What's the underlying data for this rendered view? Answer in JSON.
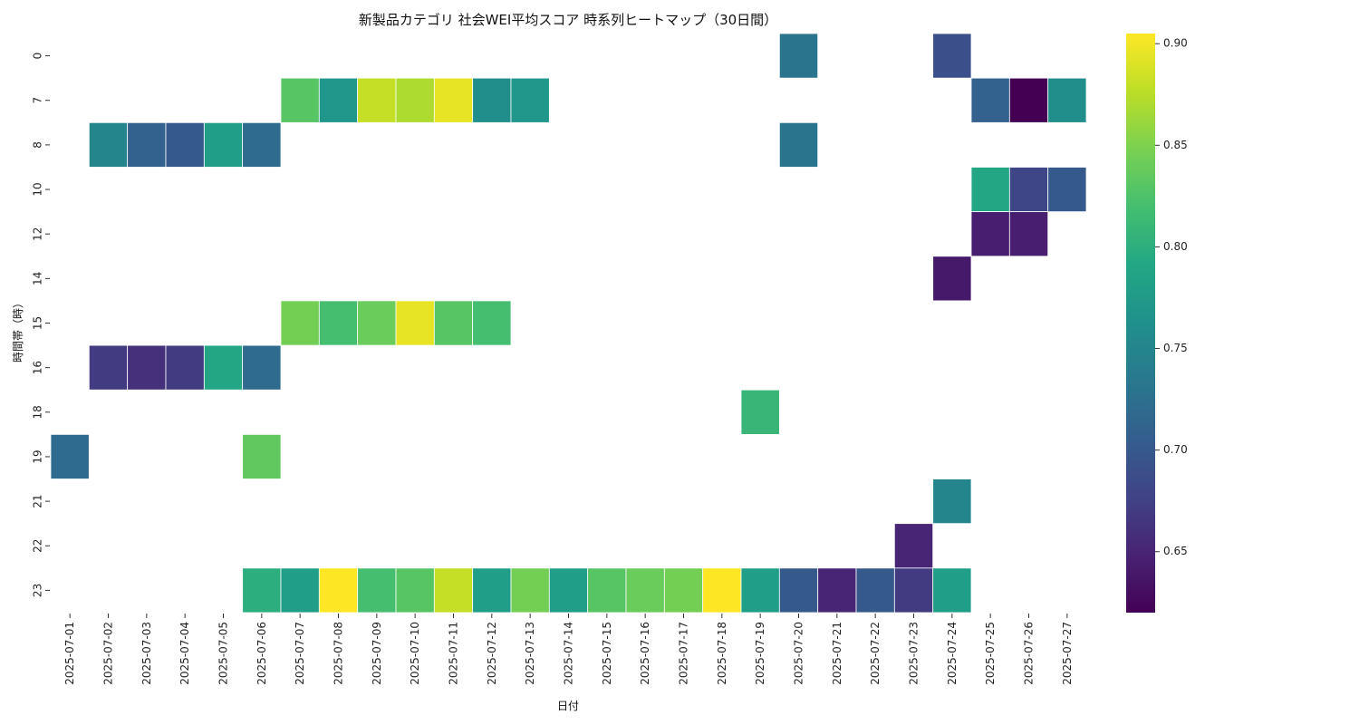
{
  "chart_data": {
    "type": "heatmap",
    "title": "新製品カテゴリ 社会WEI平均スコア 時系列ヒートマップ（30日間）",
    "xlabel": "日付",
    "ylabel": "時間帯（時）",
    "colormap": "viridis",
    "x": [
      "2025-07-01",
      "2025-07-02",
      "2025-07-03",
      "2025-07-04",
      "2025-07-05",
      "2025-07-06",
      "2025-07-07",
      "2025-07-08",
      "2025-07-09",
      "2025-07-10",
      "2025-07-11",
      "2025-07-12",
      "2025-07-13",
      "2025-07-14",
      "2025-07-15",
      "2025-07-16",
      "2025-07-17",
      "2025-07-18",
      "2025-07-19",
      "2025-07-20",
      "2025-07-21",
      "2025-07-22",
      "2025-07-23",
      "2025-07-24",
      "2025-07-25",
      "2025-07-26",
      "2025-07-27"
    ],
    "y": [
      "0",
      "7",
      "8",
      "10",
      "12",
      "14",
      "15",
      "16",
      "18",
      "19",
      "21",
      "22",
      "23"
    ],
    "values": [
      [
        null,
        null,
        null,
        null,
        null,
        null,
        null,
        null,
        null,
        null,
        null,
        null,
        null,
        null,
        null,
        null,
        null,
        null,
        null,
        0.73,
        null,
        null,
        null,
        0.69,
        null,
        null,
        null
      ],
      [
        null,
        null,
        null,
        null,
        null,
        null,
        0.83,
        0.77,
        0.88,
        0.87,
        0.895,
        0.76,
        0.77,
        null,
        null,
        null,
        null,
        null,
        null,
        null,
        null,
        null,
        null,
        null,
        0.71,
        0.62,
        0.76
      ],
      [
        null,
        0.75,
        0.71,
        0.7,
        0.78,
        0.72,
        null,
        null,
        null,
        null,
        null,
        null,
        null,
        null,
        null,
        null,
        null,
        null,
        null,
        0.73,
        null,
        null,
        null,
        null,
        null,
        null,
        null
      ],
      [
        null,
        null,
        null,
        null,
        null,
        null,
        null,
        null,
        null,
        null,
        null,
        null,
        null,
        null,
        null,
        null,
        null,
        null,
        null,
        null,
        null,
        null,
        null,
        null,
        0.79,
        0.68,
        0.7
      ],
      [
        null,
        null,
        null,
        null,
        null,
        null,
        null,
        null,
        null,
        null,
        null,
        null,
        null,
        null,
        null,
        null,
        null,
        null,
        null,
        null,
        null,
        null,
        null,
        null,
        0.645,
        0.645,
        null
      ],
      [
        null,
        null,
        null,
        null,
        null,
        null,
        null,
        null,
        null,
        null,
        null,
        null,
        null,
        null,
        null,
        null,
        null,
        null,
        null,
        null,
        null,
        null,
        null,
        0.64,
        null,
        null,
        null
      ],
      [
        null,
        null,
        null,
        null,
        null,
        null,
        0.845,
        0.82,
        0.84,
        0.895,
        0.83,
        0.82,
        null,
        null,
        null,
        null,
        null,
        null,
        null,
        null,
        null,
        null,
        null,
        null,
        null,
        null,
        null
      ],
      [
        null,
        0.67,
        0.66,
        0.67,
        0.79,
        0.72,
        null,
        null,
        null,
        null,
        null,
        null,
        null,
        null,
        null,
        null,
        null,
        null,
        null,
        null,
        null,
        null,
        null,
        null,
        null,
        null,
        null
      ],
      [
        null,
        null,
        null,
        null,
        null,
        null,
        null,
        null,
        null,
        null,
        null,
        null,
        null,
        null,
        null,
        null,
        null,
        null,
        0.81,
        null,
        null,
        null,
        null,
        null,
        null,
        null,
        null
      ],
      [
        0.72,
        null,
        null,
        null,
        null,
        0.835,
        null,
        null,
        null,
        null,
        null,
        null,
        null,
        null,
        null,
        null,
        null,
        null,
        null,
        null,
        null,
        null,
        null,
        null,
        null,
        null,
        null
      ],
      [
        null,
        null,
        null,
        null,
        null,
        null,
        null,
        null,
        null,
        null,
        null,
        null,
        null,
        null,
        null,
        null,
        null,
        null,
        null,
        null,
        null,
        null,
        null,
        0.75,
        null,
        null,
        null
      ],
      [
        null,
        null,
        null,
        null,
        null,
        null,
        null,
        null,
        null,
        null,
        null,
        null,
        null,
        null,
        null,
        null,
        null,
        null,
        null,
        null,
        null,
        null,
        0.65,
        null,
        null,
        null,
        null
      ],
      [
        null,
        null,
        null,
        null,
        null,
        0.8,
        0.78,
        0.905,
        0.82,
        0.83,
        0.88,
        0.78,
        0.845,
        0.78,
        0.83,
        0.84,
        0.845,
        0.905,
        0.78,
        0.7,
        0.65,
        0.7,
        0.67,
        0.78,
        null,
        null,
        null
      ]
    ],
    "colorbar": {
      "min": 0.62,
      "max": 0.905,
      "ticks": [
        0.65,
        0.7,
        0.75,
        0.8,
        0.85,
        0.9
      ],
      "tick_labels": [
        "0.65",
        "0.70",
        "0.75",
        "0.80",
        "0.85",
        "0.90"
      ]
    }
  }
}
